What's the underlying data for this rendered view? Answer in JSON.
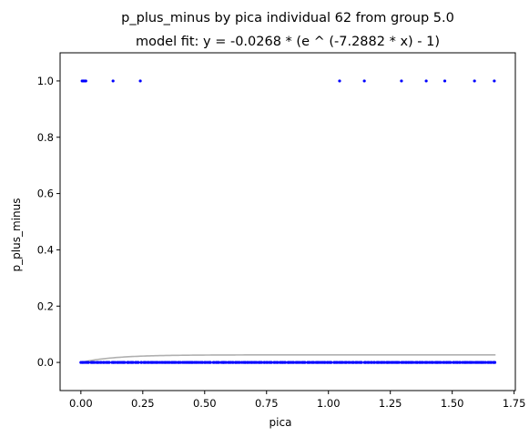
{
  "chart_data": {
    "type": "scatter",
    "title": "p_plus_minus by pica individual 62 from group 5.0",
    "subtitle": "model fit: y = -0.0268 * (e ^ (-7.2882 * x) - 1)",
    "xlabel": "pica",
    "ylabel": "p_plus_minus",
    "xlim": [
      -0.084,
      1.755
    ],
    "ylim": [
      -0.1,
      1.1
    ],
    "xticks": [
      "0.00",
      "0.25",
      "0.50",
      "0.75",
      "1.00",
      "1.25",
      "1.50",
      "1.75"
    ],
    "yticks": [
      "0.0",
      "0.2",
      "0.4",
      "0.6",
      "0.8",
      "1.0"
    ],
    "grid": false,
    "point_color": "#0000ff",
    "fit_color": "#b0b0b0",
    "fit_model": {
      "a": -0.0268,
      "b": -7.2882
    },
    "points": {
      "ones_x": [
        0.005,
        0.01,
        0.015,
        0.02,
        0.13,
        0.24,
        1.045,
        1.145,
        1.295,
        1.395,
        1.47,
        1.59,
        1.67
      ],
      "zeros_x_range": [
        0.0,
        1.675
      ],
      "zeros_count": 300
    }
  }
}
